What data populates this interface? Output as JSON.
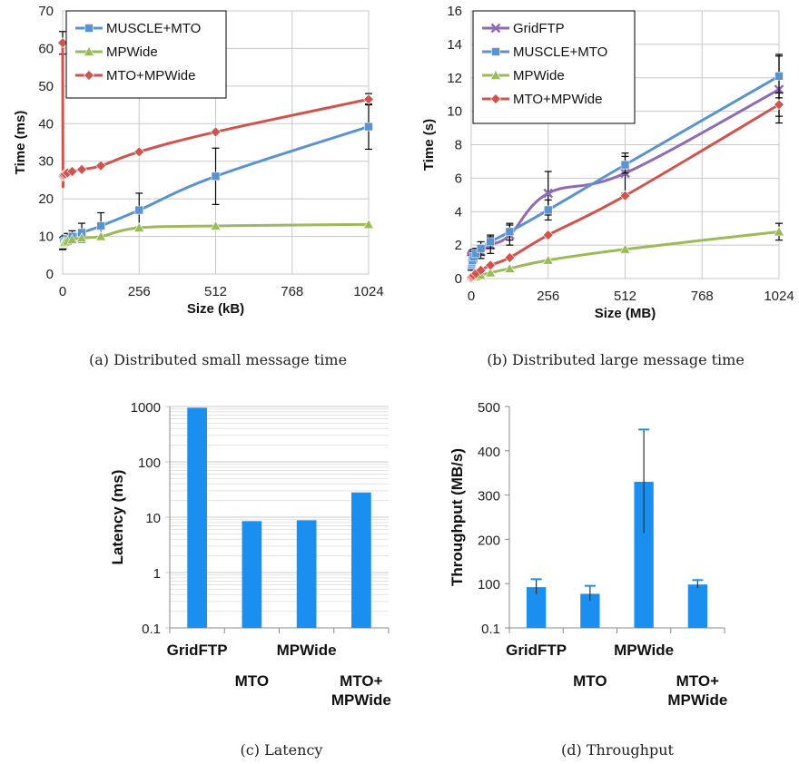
{
  "colors": {
    "blue": "#5b93cf",
    "green": "#9bbb59",
    "red": "#d0544d",
    "purple": "#8e6bb3",
    "bar": "#1a8ff0"
  },
  "chart_data": [
    {
      "id": "a",
      "type": "line",
      "caption": "(a) Distributed small message time",
      "xlabel": "Size (kB)",
      "ylabel": "Time (ms)",
      "xlim": [
        0,
        1024
      ],
      "ylim": [
        0,
        70
      ],
      "xticks": [
        0,
        256,
        512,
        768,
        1024
      ],
      "yticks": [
        0,
        10,
        20,
        30,
        40,
        50,
        60,
        70
      ],
      "grid": true,
      "legend": "top-left",
      "series": [
        {
          "name": "MUSCLE+MTO",
          "color": "#5b93cf",
          "marker": "square",
          "x": [
            0,
            1,
            2,
            4,
            8,
            16,
            32,
            64,
            128,
            256,
            512,
            1024
          ],
          "y": [
            8,
            8.2,
            8.3,
            8.5,
            8.8,
            9.3,
            10,
            11,
            12.8,
            17,
            26,
            39.2
          ],
          "err": [
            1.5,
            1.5,
            1.5,
            1.5,
            1.5,
            1.5,
            1.5,
            2.5,
            3.5,
            4.5,
            7.5,
            6
          ]
        },
        {
          "name": "MPWide",
          "color": "#9bbb59",
          "marker": "triangle",
          "x": [
            0,
            1,
            2,
            4,
            8,
            16,
            32,
            64,
            128,
            256,
            512,
            1024
          ],
          "y": [
            8,
            8.1,
            8.2,
            8.3,
            8.5,
            8.8,
            9.2,
            9.6,
            10,
            12.3,
            12.8,
            13.2
          ],
          "err": [
            0,
            0,
            0,
            0,
            0,
            0,
            0,
            0,
            0,
            0,
            0,
            0
          ]
        },
        {
          "name": "MTO+MPWide",
          "color": "#d0544d",
          "marker": "diamond",
          "x": [
            0,
            1,
            2,
            4,
            8,
            16,
            32,
            64,
            128,
            256,
            512,
            1024
          ],
          "y": [
            61.5,
            26,
            26.2,
            26.4,
            26.6,
            26.9,
            27.3,
            27.8,
            28.8,
            32.5,
            37.8,
            46.5
          ],
          "err": [
            3,
            0,
            0,
            0,
            0,
            0,
            0,
            0,
            0,
            0,
            0,
            1.5
          ]
        }
      ]
    },
    {
      "id": "b",
      "type": "line",
      "caption": "(b) Distributed large message time",
      "xlabel": "Size (MB)",
      "ylabel": "Time (s)",
      "xlim": [
        0,
        1024
      ],
      "ylim": [
        0,
        16
      ],
      "xticks": [
        0,
        256,
        512,
        768,
        1024
      ],
      "yticks": [
        0,
        2,
        4,
        6,
        8,
        10,
        12,
        14,
        16
      ],
      "grid": true,
      "legend": "top-left",
      "series": [
        {
          "name": "GridFTP",
          "color": "#8e6bb3",
          "marker": "x",
          "x": [
            0,
            1,
            2,
            4,
            8,
            16,
            32,
            64,
            128,
            256,
            512,
            1024
          ],
          "y": [
            1.2,
            1.3,
            1.35,
            1.4,
            1.45,
            1.5,
            1.6,
            2.0,
            2.6,
            5.1,
            6.3,
            11.3
          ],
          "err": [
            0.3,
            0.3,
            0.3,
            0.3,
            0.3,
            0.3,
            0.4,
            0.5,
            0.6,
            1.3,
            1.2,
            2
          ]
        },
        {
          "name": "MUSCLE+MTO",
          "color": "#5b93cf",
          "marker": "square",
          "x": [
            0,
            1,
            2,
            4,
            8,
            16,
            32,
            64,
            128,
            256,
            512,
            1024
          ],
          "y": [
            0.8,
            0.9,
            1.0,
            1.1,
            1.3,
            1.5,
            1.8,
            2.2,
            2.8,
            4.1,
            6.8,
            12.1
          ],
          "err": [
            0.3,
            0.3,
            0.3,
            0.3,
            0.3,
            0.3,
            0.4,
            0.4,
            0.5,
            0.6,
            0.5,
            1.3
          ]
        },
        {
          "name": "MPWide",
          "color": "#9bbb59",
          "marker": "triangle",
          "x": [
            0,
            1,
            2,
            4,
            8,
            16,
            32,
            64,
            128,
            256,
            512,
            1024
          ],
          "y": [
            0,
            0.02,
            0.04,
            0.06,
            0.08,
            0.12,
            0.2,
            0.35,
            0.6,
            1.1,
            1.75,
            2.8
          ],
          "err": [
            0,
            0,
            0,
            0,
            0,
            0,
            0,
            0,
            0,
            0,
            0,
            0.5
          ]
        },
        {
          "name": "MTO+MPWide",
          "color": "#d0544d",
          "marker": "diamond",
          "x": [
            0,
            1,
            2,
            4,
            8,
            16,
            32,
            64,
            128,
            256,
            512,
            1024
          ],
          "y": [
            0,
            0.05,
            0.1,
            0.15,
            0.2,
            0.3,
            0.5,
            0.8,
            1.25,
            2.6,
            4.95,
            10.4
          ],
          "err": [
            0,
            0,
            0,
            0,
            0,
            0,
            0,
            0,
            0,
            0,
            0,
            0.7
          ]
        }
      ]
    },
    {
      "id": "c",
      "type": "bar",
      "caption": "(c) Latency",
      "ylabel": "Latency (ms)",
      "yscale": "log",
      "ylim": [
        0.1,
        1000
      ],
      "yticks": [
        "0.1",
        "1",
        "10",
        "100",
        "1000"
      ],
      "grid": true,
      "color": "#1a8ff0",
      "categories": [
        "GridFTP",
        "MTO",
        "MPWide",
        "MTO+\nMPWide"
      ],
      "values": [
        950,
        8.5,
        8.8,
        28
      ]
    },
    {
      "id": "d",
      "type": "bar",
      "caption": "(d) Throughput",
      "ylabel": "Throughput (MB/s)",
      "ylim": [
        0,
        500
      ],
      "yticks": [
        "0.1",
        "100",
        "200",
        "300",
        "400",
        "500"
      ],
      "grid": false,
      "color": "#1a8ff0",
      "categories": [
        "GridFTP",
        "MTO",
        "MPWide",
        "MTO+\nMPWide"
      ],
      "values": [
        92,
        77,
        330,
        98
      ],
      "err": [
        18,
        18,
        118,
        10
      ]
    }
  ]
}
